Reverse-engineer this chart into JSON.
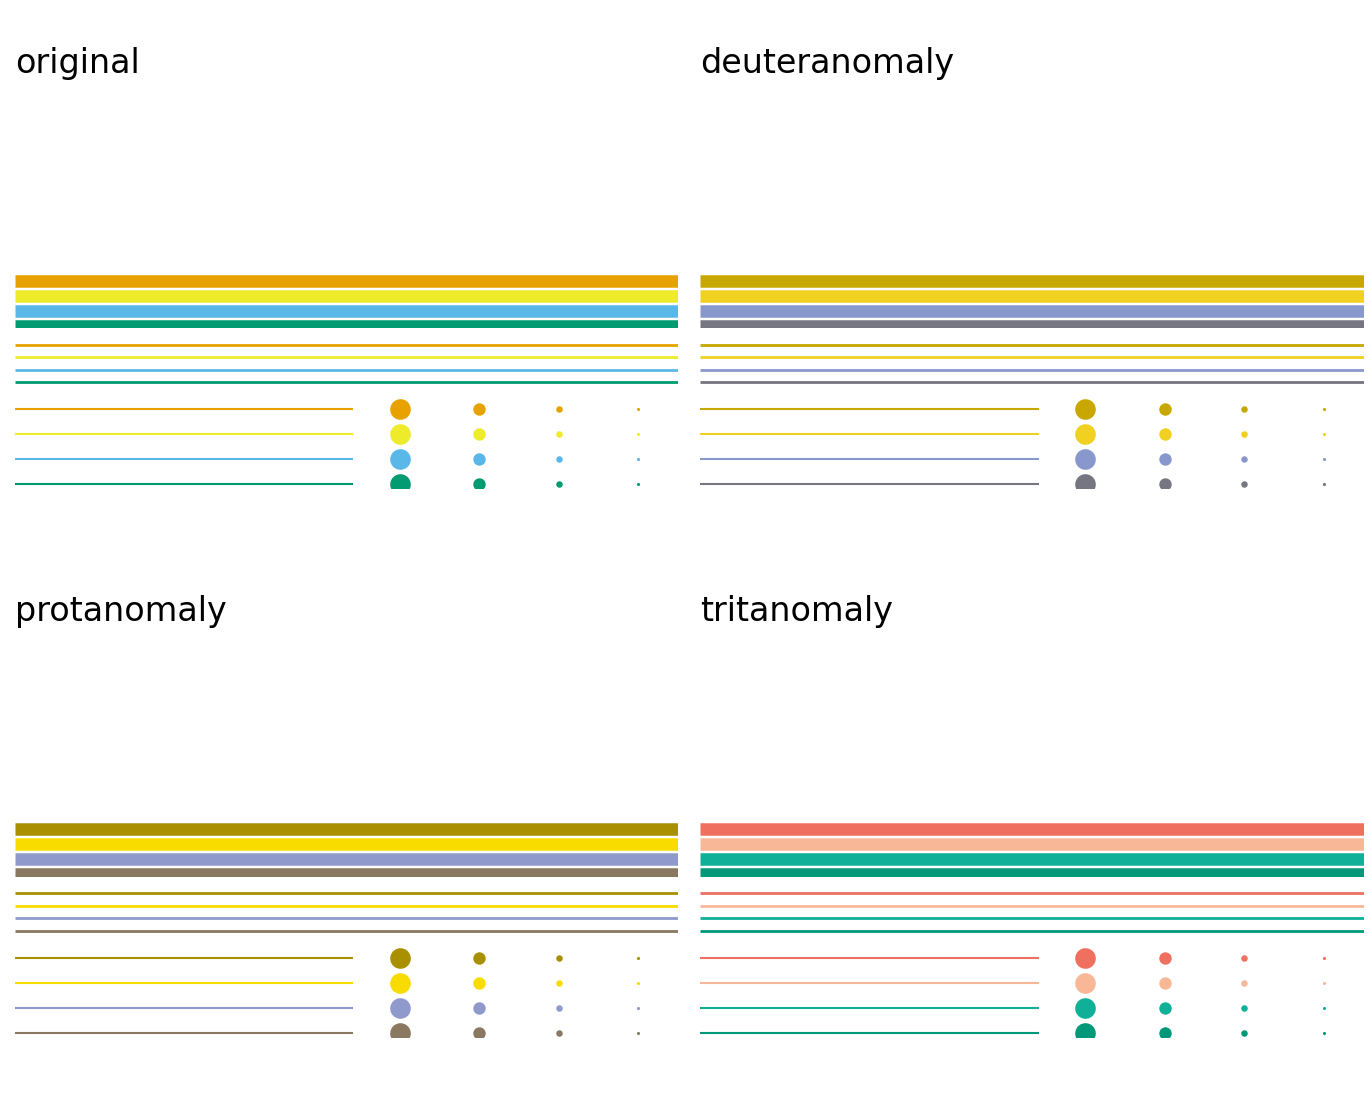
{
  "panels": [
    {
      "title": "original",
      "colors": [
        "#E8A200",
        "#EDEB2A",
        "#5AB8E8",
        "#009B70"
      ],
      "col": 0,
      "row": 0
    },
    {
      "title": "deuteranomaly",
      "colors": [
        "#C8A800",
        "#F0D020",
        "#8898CC",
        "#767682"
      ],
      "col": 1,
      "row": 0
    },
    {
      "title": "protanomaly",
      "colors": [
        "#A89000",
        "#F8DC00",
        "#9099CC",
        "#8A7860"
      ],
      "col": 0,
      "row": 1
    },
    {
      "title": "tritanomaly",
      "colors": [
        "#F07060",
        "#F8B898",
        "#10B098",
        "#009878"
      ],
      "col": 1,
      "row": 1
    }
  ],
  "fig_w": 13.71,
  "fig_h": 10.97,
  "dpi": 100,
  "background": "#FFFFFF",
  "title_fontsize": 24,
  "thick_lw": 9,
  "thin_lw": 2.0,
  "dot_lw": 1.5,
  "dot_sizes": [
    220,
    80,
    22,
    5
  ]
}
